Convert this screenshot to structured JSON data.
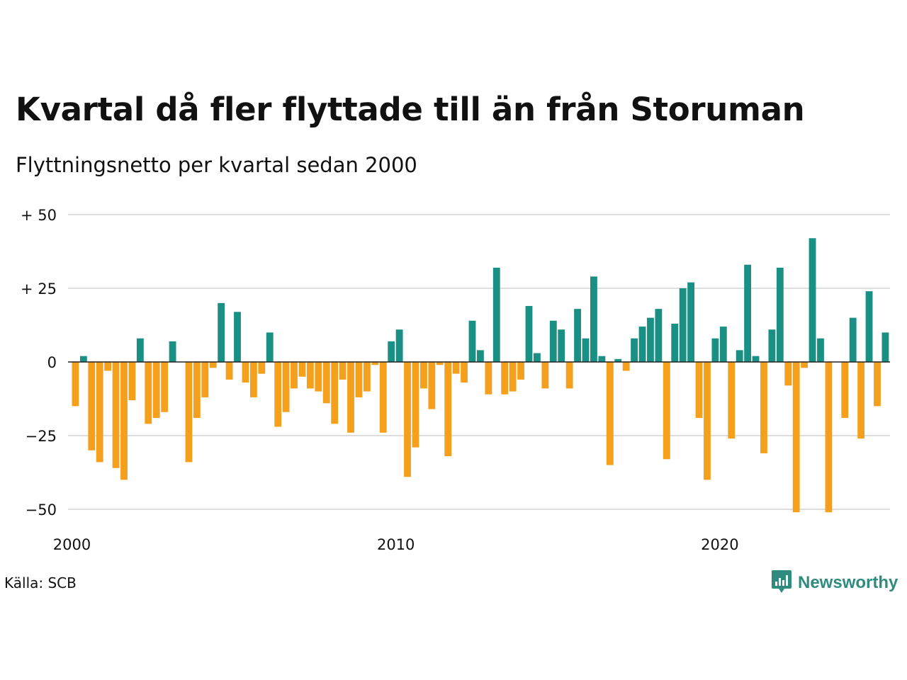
{
  "header": {
    "title": "Kvartal då fler flyttade till än från Storuman",
    "subtitle": "Flyttningsnetto per kvartal sedan 2000"
  },
  "footer": {
    "source": "Källa: SCB",
    "brand": "Newsworthy",
    "brand_icon": "bar-chart-speech-bubble-icon"
  },
  "colors": {
    "positive": "#1a8f84",
    "negative": "#f5a01d",
    "grid": "#dddddd",
    "baseline": "#222222",
    "brand": "#2e8b7e"
  },
  "chart_data": {
    "type": "bar",
    "x_start": "2000 Q1",
    "y_ticks": [
      50,
      25,
      0,
      -25,
      -50
    ],
    "y_tick_labels": [
      "+ 50",
      "+ 25",
      "0",
      "−25",
      "−50"
    ],
    "x_tick_labels": [
      "2000",
      "2010",
      "2020"
    ],
    "ylim": [
      -52,
      52
    ],
    "grid": true,
    "values": [
      -15,
      2,
      -30,
      -34,
      -3,
      -36,
      -40,
      -13,
      8,
      -21,
      -19,
      -17,
      7,
      0,
      -34,
      -19,
      -12,
      -2,
      20,
      -6,
      17,
      -7,
      -12,
      -4,
      10,
      -22,
      -17,
      -9,
      -5,
      -9,
      -10,
      -14,
      -21,
      -6,
      -24,
      -12,
      -10,
      -1,
      -24,
      7,
      11,
      -39,
      -29,
      -9,
      -16,
      -1,
      -32,
      -4,
      -7,
      14,
      4,
      -11,
      32,
      -11,
      -10,
      -6,
      19,
      3,
      -9,
      14,
      11,
      -9,
      18,
      8,
      29,
      2,
      -35,
      1,
      -3,
      8,
      12,
      15,
      18,
      -33,
      13,
      25,
      27,
      -19,
      -40,
      8,
      12,
      -26,
      4,
      33,
      2,
      -31,
      11,
      32,
      -8,
      -51,
      -2,
      42,
      8,
      -51,
      0,
      -19,
      15,
      -26,
      24,
      -15,
      10
    ]
  }
}
